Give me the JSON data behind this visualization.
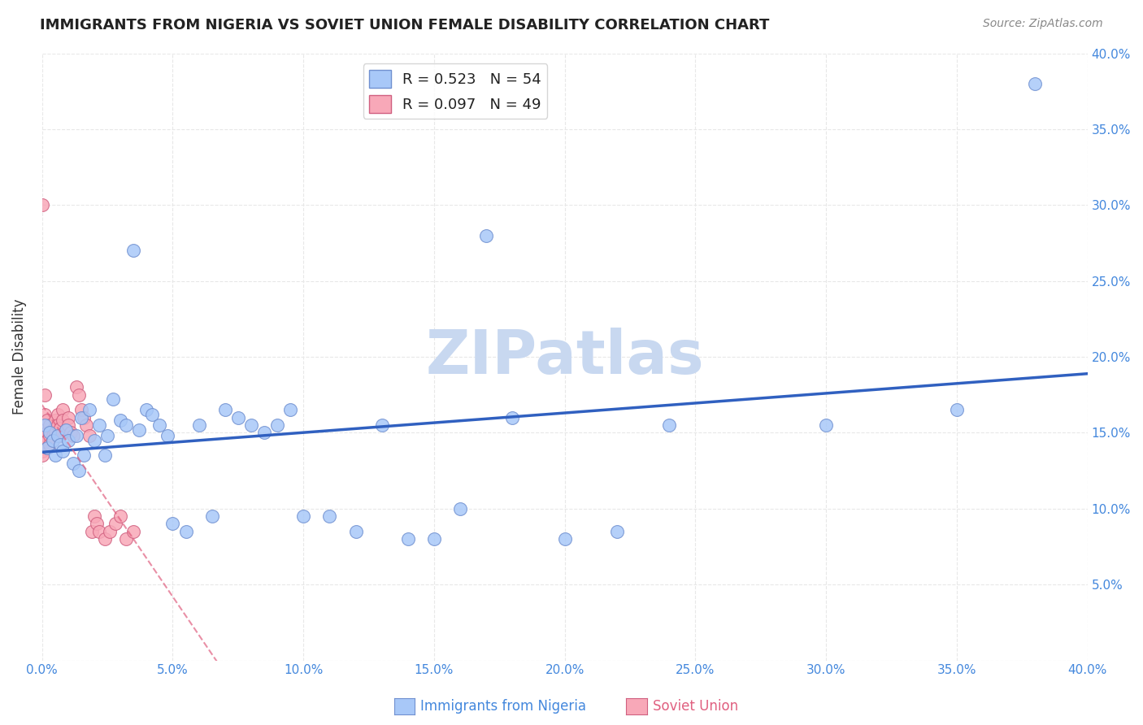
{
  "title": "IMMIGRANTS FROM NIGERIA VS SOVIET UNION FEMALE DISABILITY CORRELATION CHART",
  "source": "Source: ZipAtlas.com",
  "xlabel_nigeria": "Immigrants from Nigeria",
  "xlabel_soviet": "Soviet Union",
  "ylabel": "Female Disability",
  "xlim": [
    0.0,
    0.4
  ],
  "ylim": [
    0.0,
    0.4
  ],
  "nigeria_color": "#a8c8f8",
  "soviet_color": "#f8a8b8",
  "nigeria_edge": "#7090d0",
  "soviet_edge": "#d06080",
  "nigeria_line_color": "#3060c0",
  "soviet_line_color": "#e06080",
  "R_nigeria": 0.523,
  "N_nigeria": 54,
  "R_soviet": 0.097,
  "N_soviet": 49,
  "nigeria_x": [
    0.001,
    0.002,
    0.003,
    0.004,
    0.005,
    0.006,
    0.007,
    0.008,
    0.009,
    0.01,
    0.012,
    0.013,
    0.014,
    0.015,
    0.016,
    0.018,
    0.02,
    0.022,
    0.024,
    0.025,
    0.027,
    0.03,
    0.032,
    0.035,
    0.037,
    0.04,
    0.042,
    0.045,
    0.048,
    0.05,
    0.055,
    0.06,
    0.065,
    0.07,
    0.075,
    0.08,
    0.085,
    0.09,
    0.095,
    0.1,
    0.11,
    0.12,
    0.13,
    0.14,
    0.15,
    0.16,
    0.17,
    0.18,
    0.2,
    0.22,
    0.24,
    0.3,
    0.35,
    0.38
  ],
  "nigeria_y": [
    0.155,
    0.14,
    0.15,
    0.145,
    0.135,
    0.148,
    0.142,
    0.138,
    0.152,
    0.145,
    0.13,
    0.148,
    0.125,
    0.16,
    0.135,
    0.165,
    0.145,
    0.155,
    0.135,
    0.148,
    0.172,
    0.158,
    0.155,
    0.27,
    0.152,
    0.165,
    0.162,
    0.155,
    0.148,
    0.09,
    0.085,
    0.155,
    0.095,
    0.165,
    0.16,
    0.155,
    0.15,
    0.155,
    0.165,
    0.095,
    0.095,
    0.085,
    0.155,
    0.08,
    0.08,
    0.1,
    0.28,
    0.16,
    0.08,
    0.085,
    0.155,
    0.155,
    0.165,
    0.38
  ],
  "soviet_x": [
    0.0,
    0.0,
    0.0,
    0.0,
    0.0,
    0.001,
    0.001,
    0.001,
    0.001,
    0.002,
    0.002,
    0.002,
    0.002,
    0.003,
    0.003,
    0.003,
    0.004,
    0.004,
    0.004,
    0.005,
    0.005,
    0.006,
    0.006,
    0.006,
    0.007,
    0.007,
    0.008,
    0.008,
    0.009,
    0.01,
    0.01,
    0.011,
    0.012,
    0.013,
    0.014,
    0.015,
    0.016,
    0.017,
    0.018,
    0.019,
    0.02,
    0.021,
    0.022,
    0.024,
    0.026,
    0.028,
    0.03,
    0.032,
    0.035
  ],
  "soviet_y": [
    0.3,
    0.148,
    0.145,
    0.138,
    0.135,
    0.175,
    0.162,
    0.152,
    0.148,
    0.158,
    0.15,
    0.145,
    0.14,
    0.155,
    0.148,
    0.142,
    0.152,
    0.148,
    0.145,
    0.158,
    0.15,
    0.162,
    0.155,
    0.148,
    0.153,
    0.148,
    0.165,
    0.158,
    0.152,
    0.16,
    0.155,
    0.15,
    0.148,
    0.18,
    0.175,
    0.165,
    0.16,
    0.155,
    0.148,
    0.085,
    0.095,
    0.09,
    0.085,
    0.08,
    0.085,
    0.09,
    0.095,
    0.08,
    0.085
  ],
  "watermark": "ZIPatlas",
  "watermark_color": "#c8d8f0",
  "grid_color": "#e8e8e8",
  "background_color": "#ffffff"
}
